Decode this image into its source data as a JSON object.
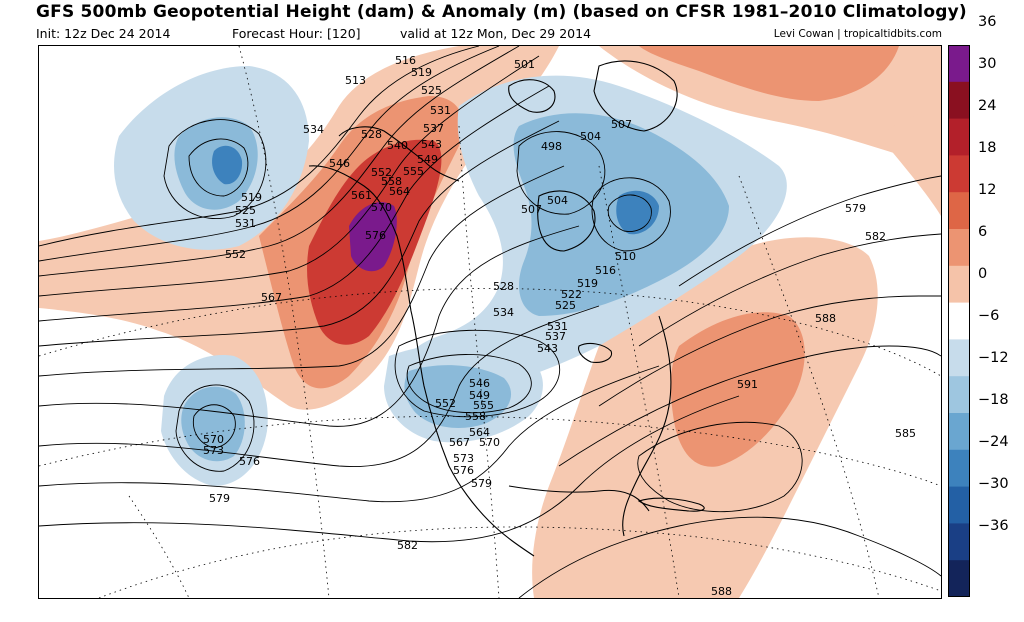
{
  "header": {
    "title": "GFS 500mb Geopotential Height (dam) & Anomaly (m) (based on CFSR 1981–2010 Climatology)",
    "init": "Init: 12z Dec 24 2014",
    "forecast_hour": "Forecast Hour: [120]",
    "valid": "valid at 12z Mon, Dec 29 2014",
    "credit": "Levi Cowan | tropicaltidbits.com"
  },
  "colorbar": {
    "labels": [
      "36",
      "30",
      "24",
      "18",
      "12",
      "6",
      "0",
      "−6",
      "−12",
      "−18",
      "−24",
      "−30",
      "−36"
    ],
    "colors": [
      "#7a1a8c",
      "#8a1020",
      "#b3202a",
      "#cc3a33",
      "#de6646",
      "#ec9472",
      "#f5c3a9",
      "#ffffff",
      "#c7dceb",
      "#9ec6e0",
      "#6aa6d0",
      "#3d82bd",
      "#2360a5",
      "#1a3f85",
      "#13245a"
    ]
  },
  "map": {
    "colors": {
      "ridge_light": "#f6c9b1",
      "ridge_mid": "#ec9472",
      "ridge_dark": "#cc3a33",
      "ridge_peak": "#7a1a8c",
      "trough_light": "#c7dceb",
      "trough_mid": "#8bbad9",
      "trough_dark": "#3d82bd",
      "coast": "#000000",
      "contour": "#000000"
    },
    "contour_labels": [
      "516",
      "519",
      "525",
      "513",
      "501",
      "531",
      "537",
      "543",
      "549",
      "534",
      "528",
      "540",
      "546",
      "555",
      "552",
      "558",
      "564",
      "561",
      "570",
      "576",
      "519",
      "525",
      "531",
      "552",
      "567",
      "498",
      "504",
      "507",
      "507",
      "504",
      "510",
      "516",
      "519",
      "522",
      "525",
      "528",
      "534",
      "531",
      "537",
      "543",
      "546",
      "549",
      "552",
      "555",
      "558",
      "564",
      "567",
      "570",
      "573",
      "576",
      "579",
      "579",
      "582",
      "588",
      "591",
      "585",
      "570",
      "573",
      "576",
      "579",
      "582",
      "588"
    ]
  }
}
